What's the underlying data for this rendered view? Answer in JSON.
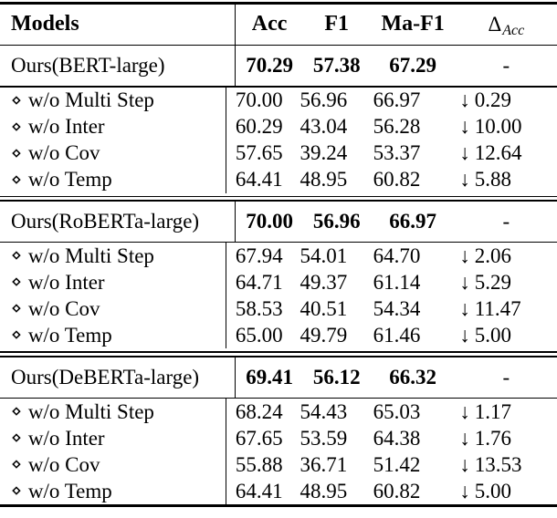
{
  "table": {
    "header": {
      "models": "Models",
      "acc": "Acc",
      "f1": "F1",
      "maf1": "Ma-F1",
      "delta_symbol": "Δ",
      "delta_subscript": "Acc"
    },
    "glyphs": {
      "diamond": "⋄",
      "down_arrow": "↓"
    },
    "sections": [
      {
        "main": {
          "model": "Ours(BERT-large)",
          "acc": "70.29",
          "f1": "57.38",
          "maf1": "67.29",
          "delta": "-"
        },
        "rows": [
          {
            "label": "w/o Multi Step",
            "acc": "70.00",
            "f1": "56.96",
            "maf1": "66.97",
            "delta": "0.29"
          },
          {
            "label": "w/o Inter",
            "acc": "60.29",
            "f1": "43.04",
            "maf1": "56.28",
            "delta": "10.00"
          },
          {
            "label": "w/o Cov",
            "acc": "57.65",
            "f1": "39.24",
            "maf1": "53.37",
            "delta": "12.64"
          },
          {
            "label": "w/o Temp",
            "acc": "64.41",
            "f1": "48.95",
            "maf1": "60.82",
            "delta": "5.88"
          }
        ]
      },
      {
        "main": {
          "model": "Ours(RoBERTa-large)",
          "acc": "70.00",
          "f1": "56.96",
          "maf1": "66.97",
          "delta": "-"
        },
        "rows": [
          {
            "label": "w/o Multi Step",
            "acc": "67.94",
            "f1": "54.01",
            "maf1": "64.70",
            "delta": "2.06"
          },
          {
            "label": "w/o Inter",
            "acc": "64.71",
            "f1": "49.37",
            "maf1": "61.14",
            "delta": "5.29"
          },
          {
            "label": "w/o Cov",
            "acc": "58.53",
            "f1": "40.51",
            "maf1": "54.34",
            "delta": "11.47"
          },
          {
            "label": "w/o Temp",
            "acc": "65.00",
            "f1": "49.79",
            "maf1": "61.46",
            "delta": "5.00"
          }
        ]
      },
      {
        "main": {
          "model": "Ours(DeBERTa-large)",
          "acc": "69.41",
          "f1": "56.12",
          "maf1": "66.32",
          "delta": "-"
        },
        "rows": [
          {
            "label": "w/o Multi Step",
            "acc": "68.24",
            "f1": "54.43",
            "maf1": "65.03",
            "delta": "1.17"
          },
          {
            "label": "w/o Inter",
            "acc": "67.65",
            "f1": "53.59",
            "maf1": "64.38",
            "delta": "1.76"
          },
          {
            "label": "w/o Cov",
            "acc": "55.88",
            "f1": "36.71",
            "maf1": "51.42",
            "delta": "13.53"
          },
          {
            "label": "w/o Temp",
            "acc": "64.41",
            "f1": "48.95",
            "maf1": "60.82",
            "delta": "5.00"
          }
        ]
      }
    ]
  }
}
